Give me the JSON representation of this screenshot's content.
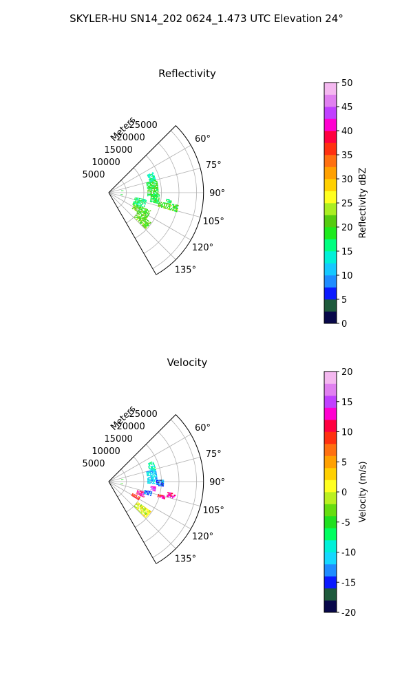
{
  "figure_title": "SKYLER-HU  SN14_202  0624_1.473 UTC Elevation 24°",
  "range_axis_label": "Meters",
  "range_ticks": [
    5000,
    10000,
    15000,
    20000,
    25000
  ],
  "azimuth_ticks": [
    "60°",
    "75°",
    "90°",
    "105°",
    "120°",
    "135°"
  ],
  "colors": {
    "grid": "#b0b0b0",
    "frame": "#000000",
    "background": "#ffffff"
  },
  "chart_data": [
    {
      "type": "heatmap",
      "projection": "polar-sector",
      "title": "Reflectivity",
      "theta_range_deg": [
        45,
        150
      ],
      "r_range_m": [
        0,
        27000
      ],
      "grid": true,
      "colorbar": {
        "label": "Reflectivity dBZ",
        "range": [
          0,
          50
        ],
        "ticks": [
          0,
          5,
          10,
          15,
          20,
          25,
          30,
          35,
          40,
          45,
          50
        ],
        "colormap": [
          [
            0,
            "#08084a"
          ],
          [
            2.5,
            "#1e5a3c"
          ],
          [
            5,
            "#0a1aff"
          ],
          [
            7.5,
            "#1f8cff"
          ],
          [
            10,
            "#15c8ff"
          ],
          [
            12.5,
            "#00f0d8"
          ],
          [
            15,
            "#00ff80"
          ],
          [
            17.5,
            "#1eea1e"
          ],
          [
            20,
            "#55cc10"
          ],
          [
            22.5,
            "#aaee22"
          ],
          [
            25,
            "#ffff20"
          ],
          [
            27.5,
            "#ffd000"
          ],
          [
            30,
            "#ffa000"
          ],
          [
            32.5,
            "#ff7010"
          ],
          [
            35,
            "#ff3010"
          ],
          [
            37.5,
            "#ff0040"
          ],
          [
            40,
            "#ff00d0"
          ],
          [
            42.5,
            "#c040ff"
          ],
          [
            45,
            "#e080f0"
          ],
          [
            47.5,
            "#f4b8f0"
          ],
          [
            50,
            "#ffe8ff"
          ]
        ]
      },
      "echo_regions": [
        {
          "theta": [
            75,
            95
          ],
          "r": [
            11000,
            14000
          ],
          "value": 19
        },
        {
          "theta": [
            92,
            102
          ],
          "r": [
            12000,
            14500
          ],
          "value": 18
        },
        {
          "theta": [
            65,
            75
          ],
          "r": [
            12000,
            13800
          ],
          "value": 16
        },
        {
          "theta": [
            100,
            106
          ],
          "r": [
            14500,
            20000
          ],
          "value": 20
        },
        {
          "theta": [
            96,
            99
          ],
          "r": [
            16500,
            18000
          ],
          "value": 18
        },
        {
          "theta": [
            100,
            118
          ],
          "r": [
            7500,
            11000
          ],
          "value": 17
        },
        {
          "theta": [
            113,
            125
          ],
          "r": [
            8000,
            13000
          ],
          "value": 21
        },
        {
          "theta": [
            125,
            134
          ],
          "r": [
            10000,
            14500
          ],
          "value": 21
        },
        {
          "theta": [
            80,
            83
          ],
          "r": [
            3600,
            4000
          ],
          "value": 20
        },
        {
          "theta": [
            97,
            100
          ],
          "r": [
            3400,
            3800
          ],
          "value": 18
        },
        {
          "theta": [
            87,
            93
          ],
          "r": [
            200,
            500
          ],
          "value": 10
        }
      ]
    },
    {
      "type": "heatmap",
      "projection": "polar-sector",
      "title": "Velocity",
      "theta_range_deg": [
        45,
        150
      ],
      "r_range_m": [
        0,
        27000
      ],
      "grid": true,
      "colorbar": {
        "label": "Velocity (m/s)",
        "range": [
          -20,
          20
        ],
        "ticks": [
          -20,
          -15,
          -10,
          -5,
          0,
          5,
          10,
          15,
          20
        ],
        "colormap": [
          [
            -20,
            "#08084a"
          ],
          [
            -18,
            "#1e5a3c"
          ],
          [
            -16,
            "#0a1aff"
          ],
          [
            -14,
            "#1f8cff"
          ],
          [
            -12,
            "#15d8ff"
          ],
          [
            -10,
            "#00f0d8"
          ],
          [
            -8,
            "#00ff60"
          ],
          [
            -6,
            "#20e020"
          ],
          [
            -4,
            "#66dd10"
          ],
          [
            -2,
            "#bbf020"
          ],
          [
            0,
            "#ffff20"
          ],
          [
            2,
            "#ffd000"
          ],
          [
            4,
            "#ffa000"
          ],
          [
            6,
            "#ff7010"
          ],
          [
            8,
            "#ff3010"
          ],
          [
            10,
            "#ff0040"
          ],
          [
            12,
            "#ff00d0"
          ],
          [
            14,
            "#c040ff"
          ],
          [
            16,
            "#e080f0"
          ],
          [
            18,
            "#f4b8f0"
          ],
          [
            20,
            "#ffe8ff"
          ]
        ]
      },
      "echo_regions": [
        {
          "theta": [
            75,
            92
          ],
          "r": [
            11000,
            13800
          ],
          "value": -11
        },
        {
          "theta": [
            88,
            95
          ],
          "r": [
            13500,
            15500
          ],
          "value": -14
        },
        {
          "theta": [
            65,
            75
          ],
          "r": [
            12000,
            13800
          ],
          "value": -9
        },
        {
          "theta": [
            96,
            101
          ],
          "r": [
            12000,
            13500
          ],
          "value": 15
        },
        {
          "theta": [
            100,
            104
          ],
          "r": [
            17000,
            19500
          ],
          "value": 13
        },
        {
          "theta": [
            104,
            107
          ],
          "r": [
            14500,
            16500
          ],
          "value": 11
        },
        {
          "theta": [
            106,
            114
          ],
          "r": [
            8500,
            11000
          ],
          "value": 12
        },
        {
          "theta": [
            103,
            108
          ],
          "r": [
            10500,
            12500
          ],
          "value": -13
        },
        {
          "theta": [
            116,
            122
          ],
          "r": [
            7500,
            10000
          ],
          "value": 9
        },
        {
          "theta": [
            125,
            134
          ],
          "r": [
            10000,
            14500
          ],
          "value": 0
        },
        {
          "theta": [
            80,
            83
          ],
          "r": [
            3600,
            4000
          ],
          "value": -5
        },
        {
          "theta": [
            97,
            100
          ],
          "r": [
            3400,
            3800
          ],
          "value": -4
        }
      ]
    }
  ]
}
